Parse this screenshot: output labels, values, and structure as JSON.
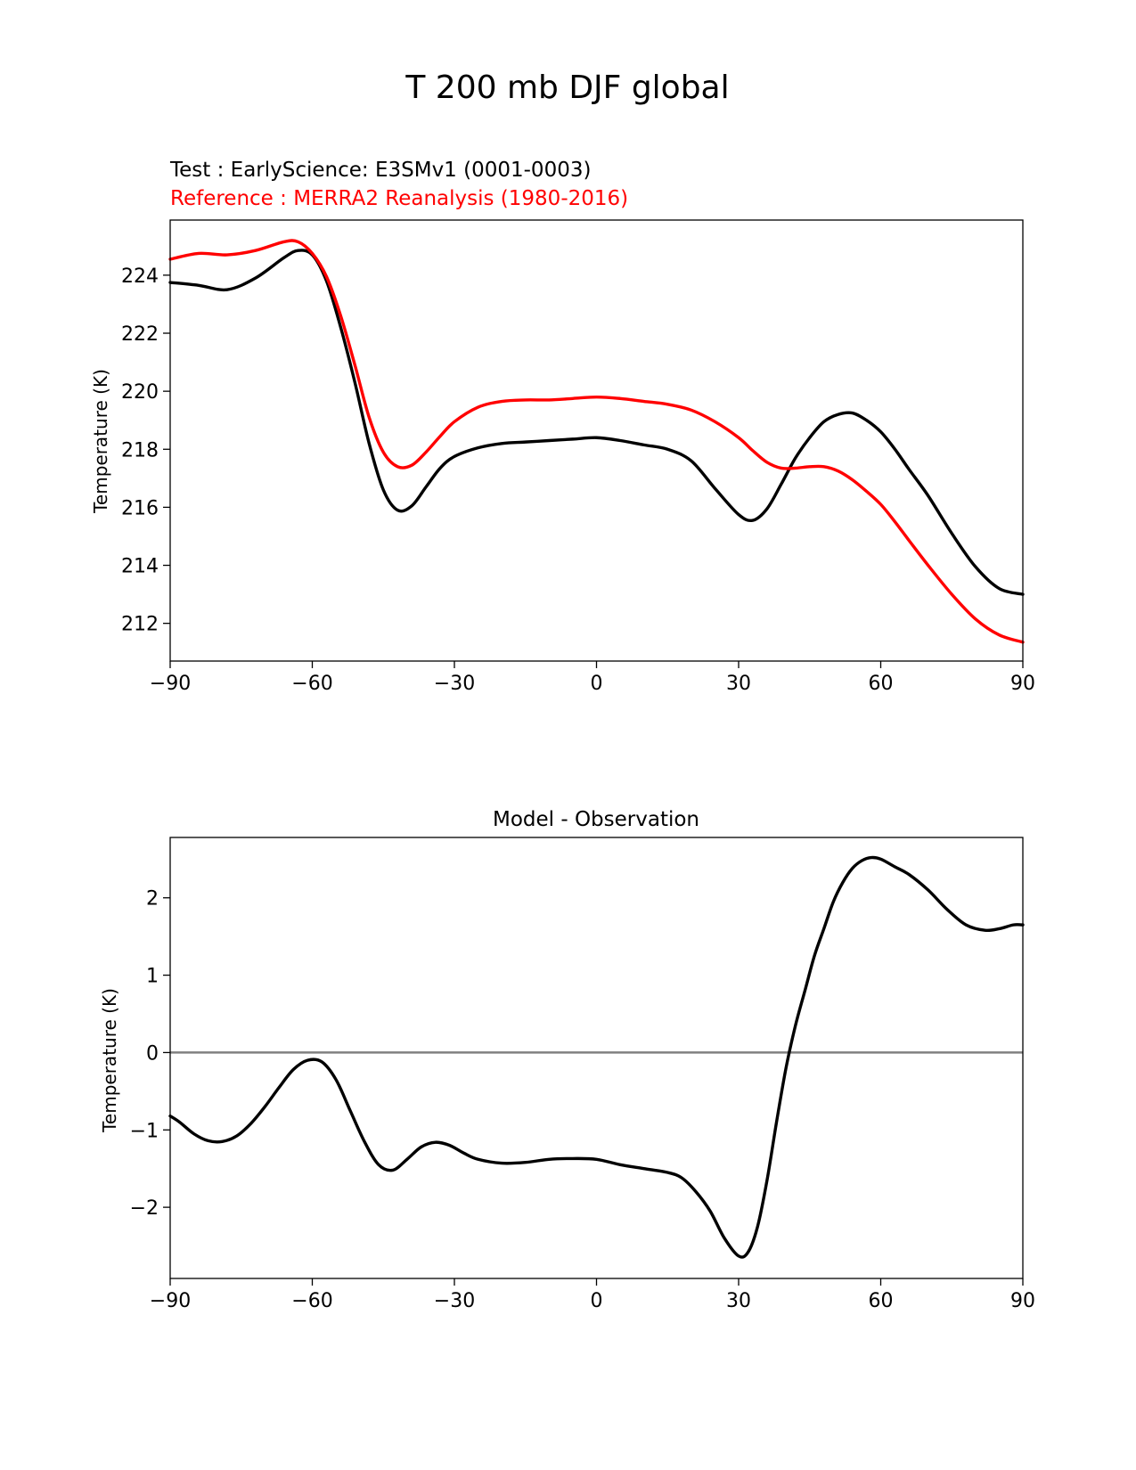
{
  "figure": {
    "suptitle": "T 200 mb DJF global"
  },
  "chart_data": [
    {
      "type": "line",
      "title_test": "Test : EarlyScience: E3SMv1 (0001-0003)",
      "title_reference": "Reference : MERRA2 Reanalysis (1980-2016)",
      "xlabel": "",
      "ylabel": "Temperature (K)",
      "xlim": [
        -90,
        90
      ],
      "ylim": [
        210.7,
        225.9
      ],
      "xticks": [
        -90,
        -60,
        -30,
        0,
        30,
        60,
        90
      ],
      "xtick_labels": [
        "−90",
        "−60",
        "−30",
        "0",
        "30",
        "60",
        "90"
      ],
      "yticks": [
        212,
        214,
        216,
        218,
        220,
        222,
        224
      ],
      "yticklabels": [
        "212",
        "214",
        "216",
        "218",
        "220",
        "222",
        "224"
      ],
      "series": [
        {
          "name": "Test",
          "color": "#000000",
          "x": [
            -90,
            -84,
            -78,
            -72,
            -66,
            -63,
            -60,
            -57,
            -54,
            -51,
            -48,
            -45,
            -42,
            -39,
            -36,
            -33,
            -30,
            -25,
            -20,
            -15,
            -10,
            -5,
            0,
            5,
            10,
            15,
            20,
            25,
            30,
            33,
            36,
            39,
            42,
            45,
            48,
            51,
            54,
            57,
            60,
            63,
            66,
            70,
            75,
            80,
            85,
            90
          ],
          "values": [
            223.75,
            223.65,
            223.5,
            223.9,
            224.6,
            224.85,
            224.7,
            223.8,
            222.2,
            220.3,
            218.2,
            216.6,
            215.9,
            216.05,
            216.7,
            217.35,
            217.75,
            218.05,
            218.2,
            218.25,
            218.3,
            218.35,
            218.4,
            218.3,
            218.15,
            218.0,
            217.6,
            216.65,
            215.75,
            215.55,
            215.95,
            216.8,
            217.7,
            218.4,
            218.95,
            219.2,
            219.25,
            219.0,
            218.6,
            218.0,
            217.3,
            216.4,
            215.1,
            213.95,
            213.2,
            213.0
          ]
        },
        {
          "name": "Reference",
          "color": "#ff0000",
          "x": [
            -90,
            -84,
            -78,
            -72,
            -66,
            -63,
            -60,
            -57,
            -54,
            -51,
            -48,
            -45,
            -42,
            -39,
            -36,
            -33,
            -30,
            -25,
            -20,
            -15,
            -10,
            -5,
            0,
            5,
            10,
            15,
            20,
            25,
            30,
            33,
            36,
            39,
            42,
            45,
            48,
            51,
            54,
            57,
            60,
            63,
            66,
            70,
            75,
            80,
            85,
            90
          ],
          "values": [
            224.55,
            224.75,
            224.7,
            224.85,
            225.15,
            225.15,
            224.75,
            223.95,
            222.6,
            220.9,
            219.1,
            217.9,
            217.4,
            217.45,
            217.9,
            218.45,
            218.95,
            219.45,
            219.65,
            219.7,
            219.7,
            219.75,
            219.8,
            219.75,
            219.65,
            219.55,
            219.35,
            218.95,
            218.4,
            217.95,
            217.55,
            217.35,
            217.35,
            217.4,
            217.4,
            217.25,
            216.95,
            216.55,
            216.1,
            215.5,
            214.85,
            214.0,
            213.0,
            212.15,
            211.6,
            211.35
          ]
        }
      ]
    },
    {
      "type": "line",
      "title": "Model - Observation",
      "xlabel": "",
      "ylabel": "Temperature (K)",
      "xlim": [
        -90,
        90
      ],
      "ylim": [
        -2.92,
        2.78
      ],
      "xticks": [
        -90,
        -60,
        -30,
        0,
        30,
        60,
        90
      ],
      "xtick_labels": [
        "−90",
        "−60",
        "−30",
        "0",
        "30",
        "60",
        "90"
      ],
      "yticks": [
        -2,
        -1,
        0,
        1,
        2
      ],
      "yticklabels": [
        "−2",
        "−1",
        "0",
        "1",
        "2"
      ],
      "zero_line": {
        "value": 0,
        "color": "#808080"
      },
      "series": [
        {
          "name": "Model - Observation",
          "color": "#000000",
          "x": [
            -90,
            -88,
            -85,
            -82,
            -79,
            -76,
            -73,
            -70,
            -67,
            -64,
            -61,
            -58,
            -55,
            -52,
            -49,
            -46,
            -43,
            -40,
            -37,
            -34,
            -31,
            -28,
            -25,
            -20,
            -15,
            -10,
            -5,
            0,
            5,
            10,
            15,
            18,
            21,
            24,
            27,
            30,
            32,
            34,
            36,
            38,
            40,
            42,
            44,
            46,
            48,
            50,
            52,
            54,
            56,
            58,
            60,
            63,
            66,
            70,
            74,
            78,
            82,
            85,
            88,
            90
          ],
          "values": [
            -0.82,
            -0.9,
            -1.05,
            -1.14,
            -1.15,
            -1.08,
            -0.92,
            -0.7,
            -0.45,
            -0.22,
            -0.1,
            -0.12,
            -0.35,
            -0.75,
            -1.15,
            -1.45,
            -1.52,
            -1.38,
            -1.22,
            -1.16,
            -1.2,
            -1.3,
            -1.38,
            -1.43,
            -1.42,
            -1.38,
            -1.37,
            -1.38,
            -1.45,
            -1.5,
            -1.55,
            -1.62,
            -1.8,
            -2.05,
            -2.4,
            -2.63,
            -2.58,
            -2.25,
            -1.65,
            -0.9,
            -0.2,
            0.35,
            0.8,
            1.25,
            1.6,
            1.95,
            2.2,
            2.38,
            2.48,
            2.52,
            2.5,
            2.4,
            2.3,
            2.1,
            1.85,
            1.65,
            1.58,
            1.6,
            1.65,
            1.65
          ]
        }
      ]
    }
  ]
}
